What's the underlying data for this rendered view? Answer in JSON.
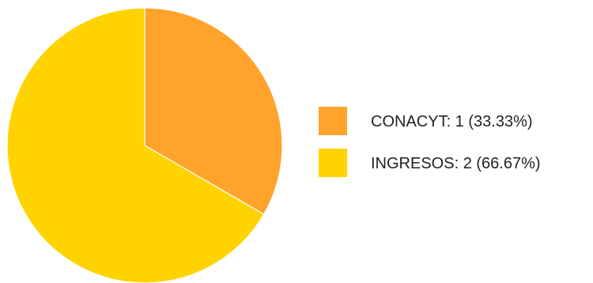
{
  "chart_data": {
    "type": "pie",
    "title": "",
    "slices": [
      {
        "label": "CONACYT",
        "value": 1,
        "percent": 33.33,
        "color": "#FFA32B"
      },
      {
        "label": "INGRESOS",
        "value": 2,
        "percent": 66.67,
        "color": "#FFD300"
      }
    ],
    "legend": {
      "placement": "right",
      "entries": [
        "CONACYT: 1 (33.33%)",
        "INGRESOS: 2 (66.67%)"
      ]
    },
    "start_angle": "12 o'clock",
    "direction": "clockwise"
  }
}
